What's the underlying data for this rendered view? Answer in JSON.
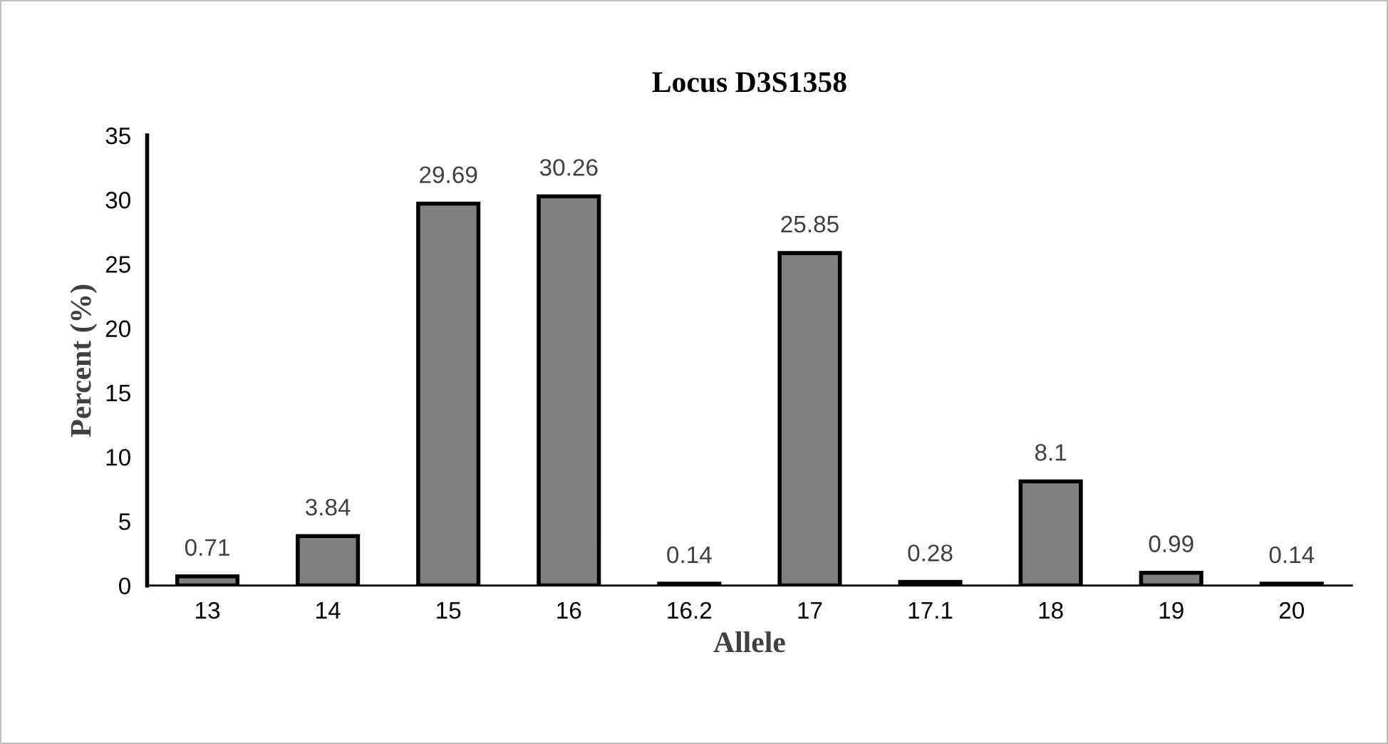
{
  "chart_data": {
    "type": "bar",
    "title": "Locus D3S1358",
    "xlabel": "Allele",
    "ylabel": "Percent (%)",
    "categories": [
      "13",
      "14",
      "15",
      "16",
      "16.2",
      "17",
      "17.1",
      "18",
      "19",
      "20"
    ],
    "values": [
      0.71,
      3.84,
      29.69,
      30.26,
      0.14,
      25.85,
      0.28,
      8.1,
      0.99,
      0.14
    ],
    "color": "#808080",
    "ylim": [
      0,
      35
    ],
    "yticks": [
      0,
      5,
      10,
      15,
      20,
      25,
      30,
      35
    ],
    "data_labels": true,
    "grid": false,
    "legend": false
  }
}
